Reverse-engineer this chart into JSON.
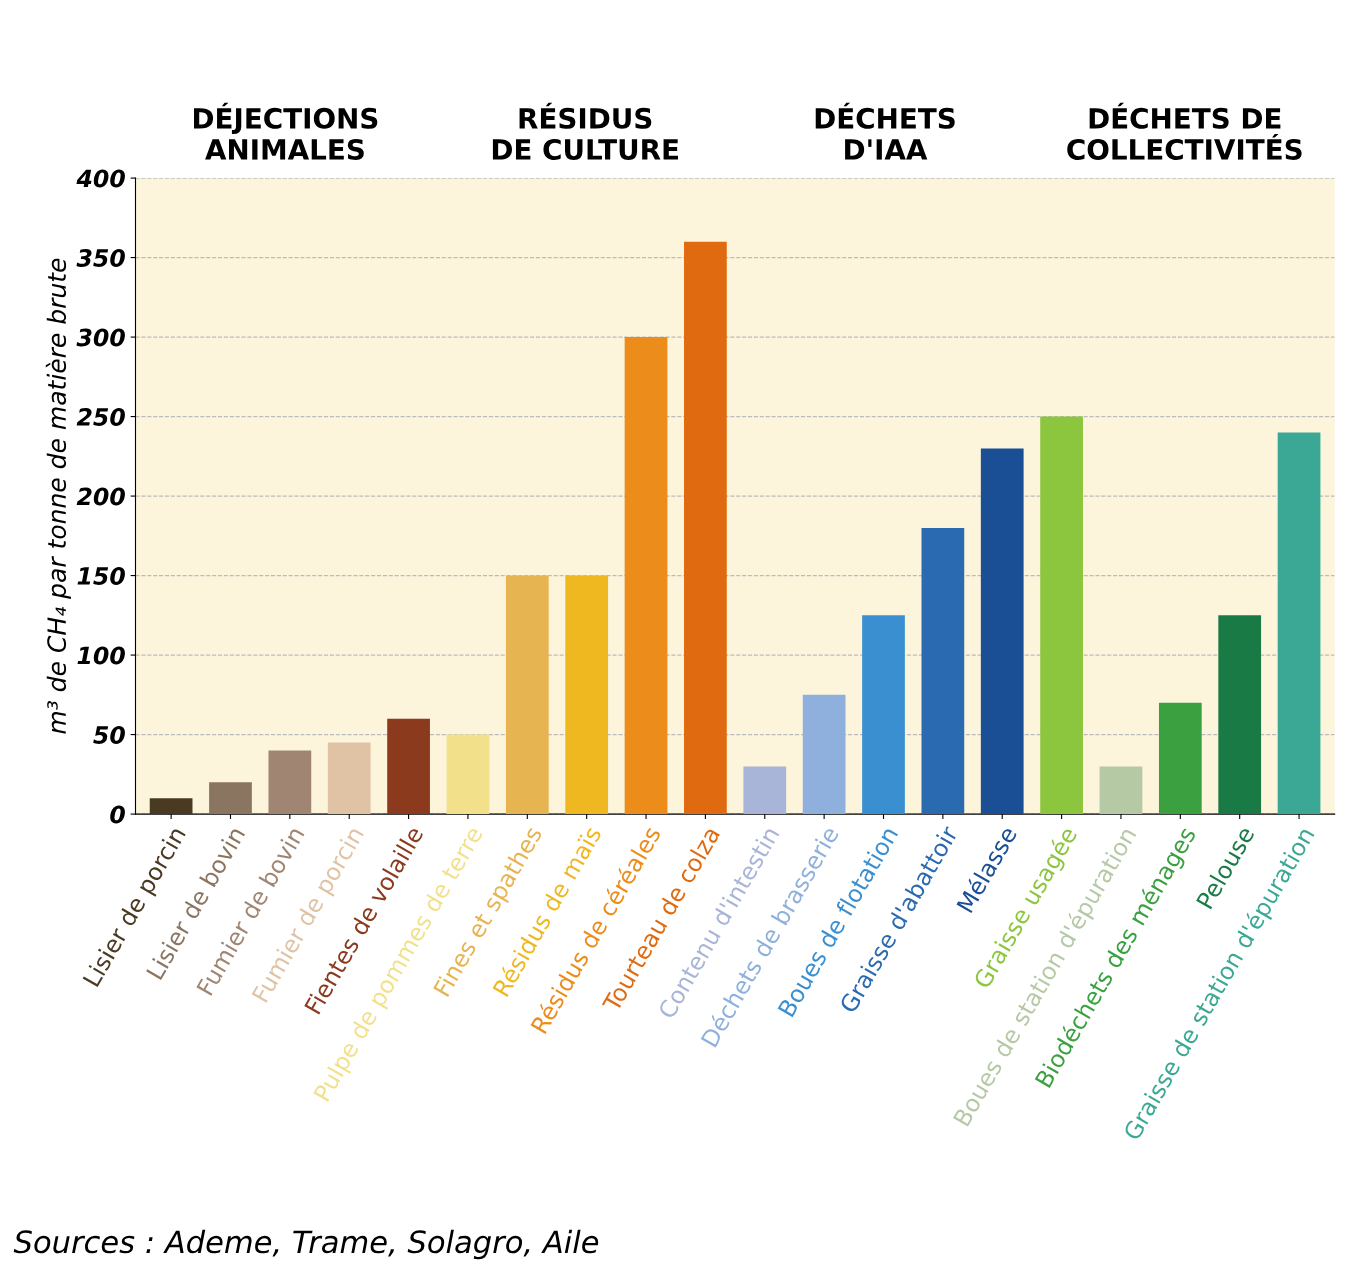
{
  "chart_data": {
    "type": "bar",
    "ylabel": "m³ de CH₄ par tonne de matière brute",
    "categories": [
      "Lisier de porcin",
      "Lisier de bovin",
      "Fumier de bovin",
      "Fumier de porcin",
      "Fientes de volaille",
      "Pulpe de pommes de terre",
      "Fines et spathes",
      "Résidus de maïs",
      "Résidus de céréales",
      "Tourteau de colza",
      "Contenu d'intestin",
      "Déchets de brasserie",
      "Boues de flotation",
      "Graisse d'abattoir",
      "Mélasse",
      "Graisse usagée",
      "Boues de station d'épuration",
      "Biodéchets des ménages",
      "Pelouse",
      "Graisse de station d'épuration"
    ],
    "values": [
      10,
      20,
      40,
      45,
      60,
      50,
      150,
      150,
      300,
      360,
      30,
      75,
      125,
      180,
      230,
      250,
      30,
      70,
      125,
      240
    ],
    "colors": [
      "#4a3a22",
      "#8a7560",
      "#a08672",
      "#e0c3a5",
      "#8b3a1e",
      "#f2e08a",
      "#e6b450",
      "#f0b820",
      "#ec8c1a",
      "#e06a10",
      "#a8b4d8",
      "#8fb0dc",
      "#3a8fd0",
      "#2a6ab0",
      "#1a4f95",
      "#8cc63f",
      "#b5c9a5",
      "#3aa040",
      "#1a7a45",
      "#3aa894"
    ],
    "ylim": [
      0,
      400
    ],
    "yticks": [
      0,
      50,
      100,
      150,
      200,
      250,
      300,
      350,
      400
    ],
    "grid": "y",
    "annotations": [
      "DÉJECTIONS\nANIMALES",
      "RÉSIDUS\nDE CULTURE",
      "DÉCHETS\nD'IAA",
      "DÉCHETS DE\nCOLLECTIVITÉS",
      "Sources : Ademe, Trame, Solagro, Aile"
    ]
  }
}
